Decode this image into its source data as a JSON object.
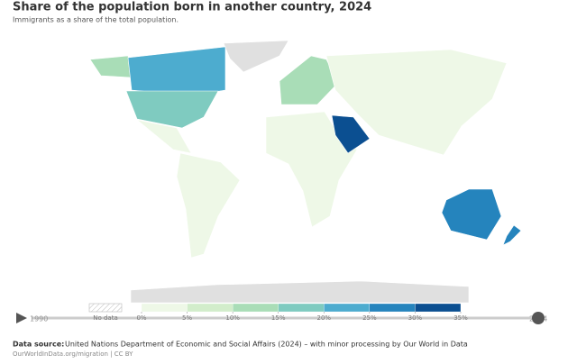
{
  "header": {
    "title": "Share of the population born in another country, 2024",
    "subtitle": "Immigrants as a share of the total population."
  },
  "legend": {
    "no_data": "No data",
    "ticks": [
      {
        "value": 0,
        "label": "0%"
      },
      {
        "value": 5,
        "label": "5%"
      },
      {
        "value": 10,
        "label": "10%"
      },
      {
        "value": 15,
        "label": "15%"
      },
      {
        "value": 20,
        "label": "20%"
      },
      {
        "value": 25,
        "label": "25%"
      },
      {
        "value": 30,
        "label": "30%"
      },
      {
        "value": 35,
        "label": "35%"
      }
    ],
    "colors": [
      "#eef8e7",
      "#d2edcb",
      "#a9ddb7",
      "#7fcbc0",
      "#4daccf",
      "#2584bd",
      "#0b4f91"
    ]
  },
  "timeline": {
    "start": "1990",
    "end": "2024"
  },
  "footer": {
    "source_label": "Data source:",
    "source": "United Nations Department of Economic and Social Affairs (2024) – with minor processing by Our World in Data",
    "url": "OurWorldInData.org/migration | CC BY"
  }
}
